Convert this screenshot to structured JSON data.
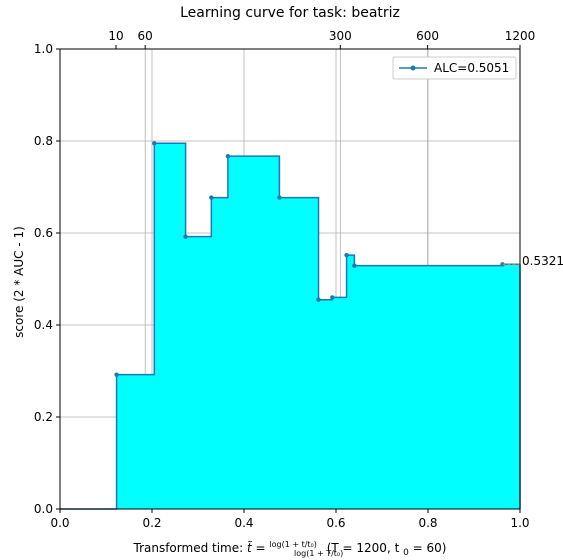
{
  "chart_data": {
    "type": "area",
    "title": "Learning curve for task: beatriz",
    "xlabel_prefix": "Transformed time: ",
    "xlabel_suffix": "(T = 1200,  t",
    "xlabel_tail": " = 60)",
    "ylabel": "score (2 * AUC - 1)",
    "xlim": [
      0.0,
      1.0
    ],
    "ylim": [
      0.0,
      1.0
    ],
    "x_ticks": [
      "0.0",
      "0.2",
      "0.4",
      "0.6",
      "0.8",
      "1.0"
    ],
    "y_ticks": [
      "0.0",
      "0.2",
      "0.4",
      "0.6",
      "0.8",
      "1.0"
    ],
    "top_ticks": [
      {
        "value": 0.2053,
        "label": "10"
      },
      {
        "value": 0.225,
        "label": "60"
      },
      {
        "value": 0.6094,
        "label": "300"
      },
      {
        "value": 0.7991,
        "label": "600"
      },
      {
        "value": 1.0,
        "label": "1200"
      }
    ],
    "grid": true,
    "fill_color": "#00ffff",
    "line_color": "#1f77b4",
    "legend": {
      "label": "ALC=0.5051",
      "placement": "top-right"
    },
    "final_value_label": "0.5321",
    "series": [
      {
        "name": "ALC=0.5051",
        "points": [
          [
            0.0,
            0.0
          ],
          [
            0.123,
            0.292
          ],
          [
            0.205,
            0.795
          ],
          [
            0.273,
            0.592
          ],
          [
            0.329,
            0.677
          ],
          [
            0.365,
            0.767
          ],
          [
            0.477,
            0.677
          ],
          [
            0.562,
            0.455
          ],
          [
            0.592,
            0.46
          ],
          [
            0.623,
            0.552
          ],
          [
            0.64,
            0.529
          ],
          [
            0.962,
            0.532
          ]
        ]
      }
    ]
  }
}
